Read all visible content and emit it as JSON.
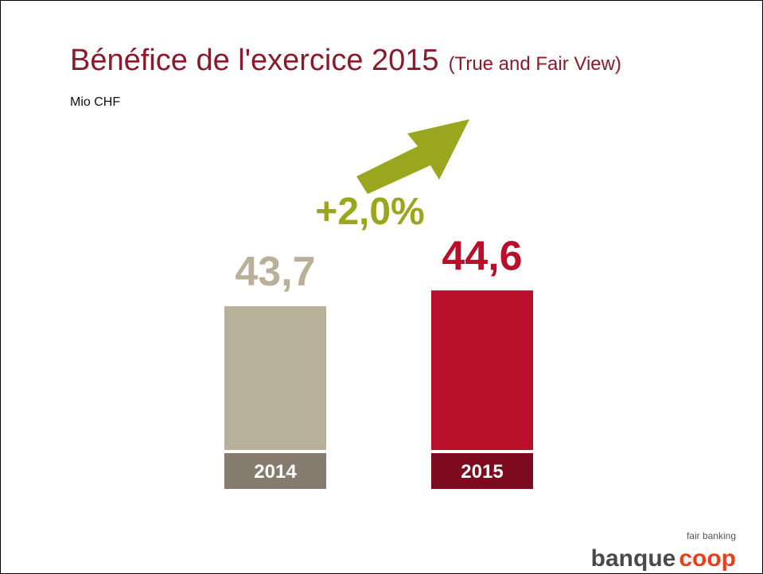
{
  "chart_data": {
    "type": "bar",
    "title": "Bénéfice de l'exercice 2015",
    "title_note": "(True and Fair View)",
    "subtitle": "Mio CHF",
    "categories": [
      "2014",
      "2015"
    ],
    "values": [
      43.7,
      44.6
    ],
    "value_labels": [
      "43,7",
      "44,6"
    ],
    "colors": [
      "#b9b09a",
      "#b80f2a"
    ],
    "label_colors": [
      "#857b6e",
      "#7d0a1e"
    ],
    "ylim": [
      35.5,
      53
    ],
    "annotation": "+2,0%",
    "logo": {
      "tagline": "fair banking",
      "name": "banque",
      "brand": "coop"
    }
  }
}
